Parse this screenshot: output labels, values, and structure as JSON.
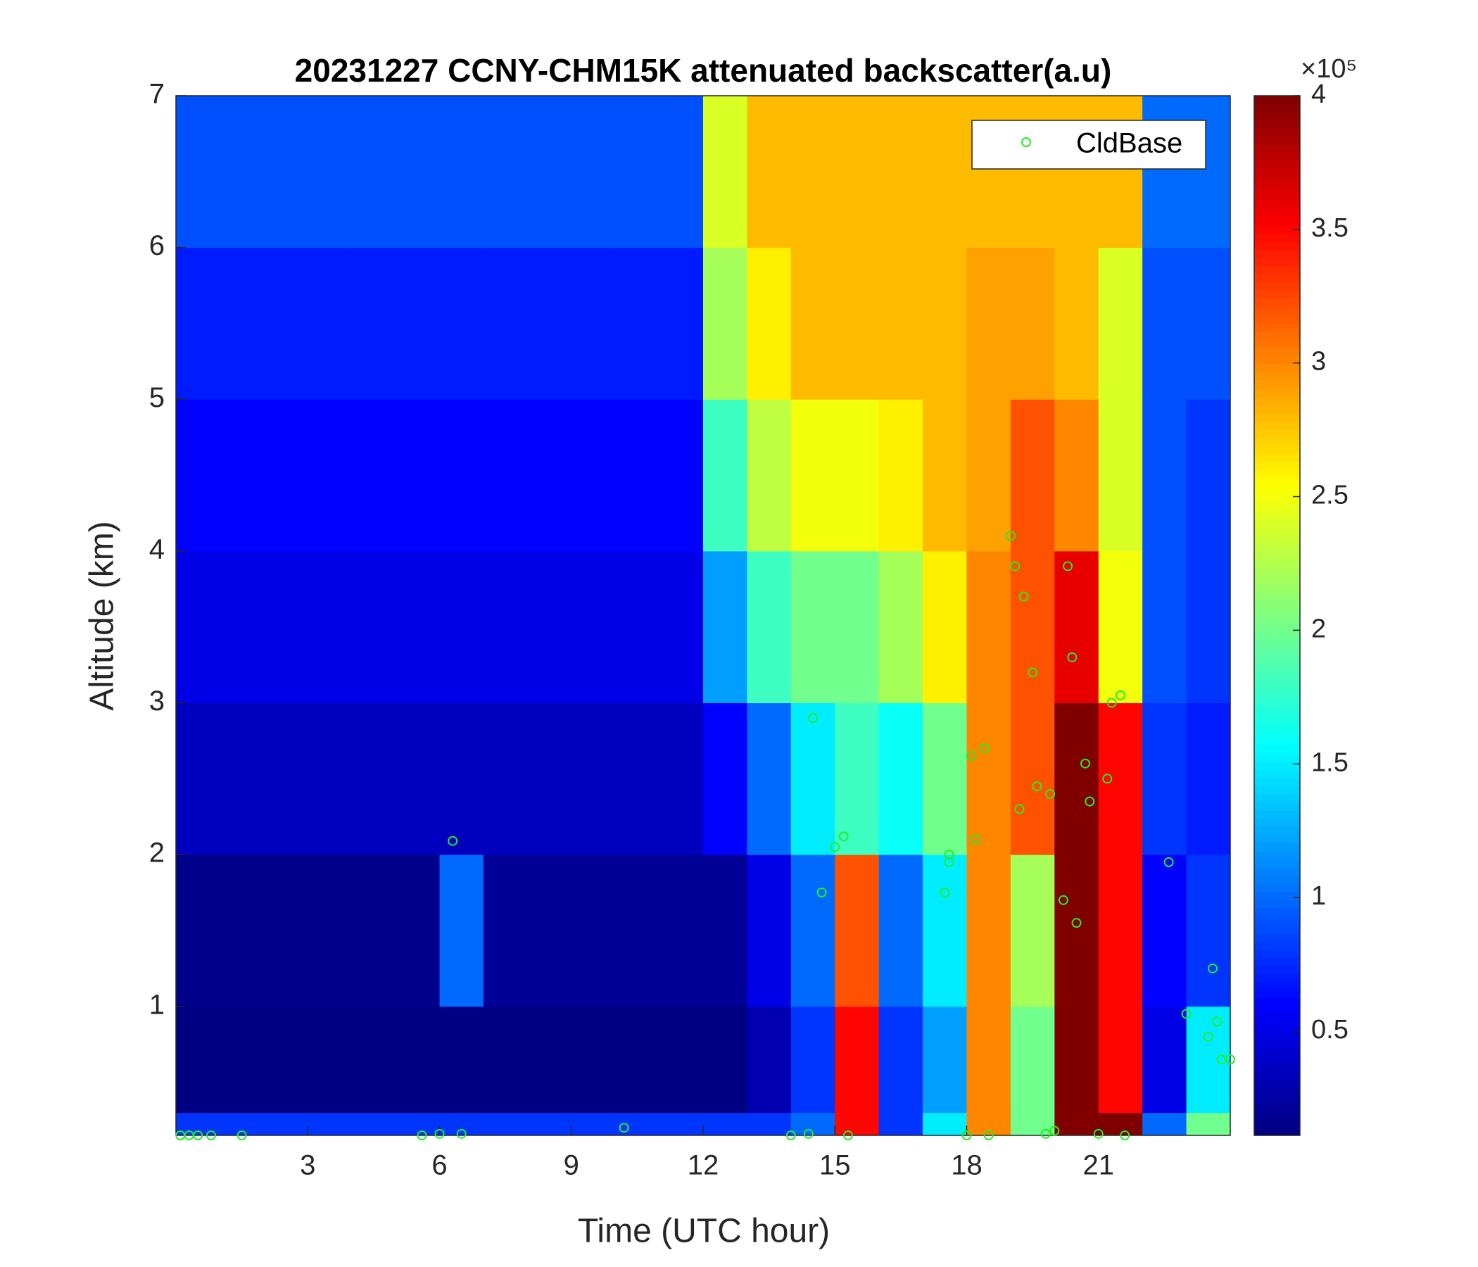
{
  "chart_data": {
    "type": "heatmap",
    "title": "20231227 CCNY-CHM15K attenuated backscatter(a.u)",
    "x_label": "Time (UTC hour)",
    "y_label": "Altitude (km)",
    "xlim": [
      0,
      24
    ],
    "ylim": [
      0.15,
      7
    ],
    "xticks": [
      3,
      6,
      9,
      12,
      15,
      18,
      21
    ],
    "yticks": [
      1,
      2,
      3,
      4,
      5,
      6,
      7
    ],
    "colormap": "jet",
    "clim": [
      0.11,
      4
    ],
    "cticks": [
      0.5,
      1,
      1.5,
      2,
      2.5,
      3,
      3.5,
      4
    ],
    "colorbar_exponent_label": "×10⁵",
    "x_edges": [
      0,
      1,
      2,
      3,
      4,
      5,
      6,
      7,
      8,
      9,
      10,
      11,
      12,
      13,
      14,
      15,
      16,
      17,
      18,
      19,
      20,
      21,
      22,
      23,
      24
    ],
    "y_edges": [
      0.15,
      0.3,
      1,
      2,
      3,
      4,
      5,
      6,
      7
    ],
    "z": [
      [
        0.8,
        0.8,
        0.8,
        0.8,
        0.8,
        0.8,
        0.8,
        0.8,
        0.8,
        0.8,
        0.8,
        0.8,
        0.8,
        0.8,
        1.0,
        3.5,
        0.8,
        1.5,
        3,
        2,
        4,
        4,
        1,
        2
      ],
      [
        0.12,
        0.12,
        0.12,
        0.12,
        0.12,
        0.12,
        0.12,
        0.12,
        0.12,
        0.12,
        0.12,
        0.12,
        0.12,
        0.3,
        0.8,
        3.5,
        0.8,
        1.2,
        3,
        2,
        4,
        3.5,
        0.5,
        1.5
      ],
      [
        0.15,
        0.15,
        0.15,
        0.15,
        0.15,
        0.15,
        1.0,
        0.2,
        0.2,
        0.2,
        0.2,
        0.2,
        0.2,
        0.5,
        1.0,
        3.2,
        1.0,
        1.5,
        3.0,
        2.2,
        4,
        3.5,
        0.6,
        0.8
      ],
      [
        0.35,
        0.35,
        0.35,
        0.35,
        0.35,
        0.35,
        0.35,
        0.35,
        0.35,
        0.35,
        0.35,
        0.35,
        0.6,
        1.0,
        1.5,
        1.8,
        1.6,
        2.0,
        3.0,
        3.2,
        4,
        3.5,
        0.8,
        0.7
      ],
      [
        0.5,
        0.5,
        0.5,
        0.5,
        0.5,
        0.5,
        0.5,
        0.5,
        0.5,
        0.5,
        0.5,
        0.5,
        1.2,
        1.8,
        2.0,
        2.0,
        2.2,
        2.6,
        3.0,
        3.2,
        3.6,
        2.5,
        0.9,
        0.8
      ],
      [
        0.6,
        0.6,
        0.6,
        0.6,
        0.6,
        0.6,
        0.6,
        0.6,
        0.6,
        0.6,
        0.6,
        0.6,
        1.8,
        2.3,
        2.5,
        2.5,
        2.6,
        2.8,
        2.9,
        3.2,
        3.0,
        2.4,
        0.9,
        0.8
      ],
      [
        0.7,
        0.7,
        0.7,
        0.7,
        0.7,
        0.7,
        0.7,
        0.7,
        0.7,
        0.7,
        0.7,
        0.7,
        2.2,
        2.6,
        2.8,
        2.8,
        2.8,
        2.8,
        2.9,
        2.9,
        2.8,
        2.4,
        0.9,
        0.9
      ],
      [
        0.9,
        0.9,
        0.9,
        0.9,
        0.9,
        0.9,
        0.9,
        0.9,
        0.9,
        0.9,
        0.9,
        0.9,
        2.4,
        2.8,
        2.8,
        2.8,
        2.8,
        2.8,
        2.8,
        2.8,
        2.8,
        2.8,
        1.0,
        1.0
      ]
    ],
    "series": [
      {
        "name": "CldBase",
        "type": "scatter",
        "color": "#22ee22",
        "x": [
          0.1,
          0.3,
          0.5,
          0.8,
          1.5,
          5.6,
          6.0,
          6.3,
          6.5,
          10.2,
          14.0,
          14.4,
          14.5,
          14.7,
          15.0,
          15.2,
          15.3,
          17.5,
          17.6,
          17.6,
          18.0,
          18.1,
          18.2,
          18.4,
          18.5,
          19.0,
          19.1,
          19.2,
          19.3,
          19.5,
          19.6,
          19.8,
          19.9,
          20.0,
          20.2,
          20.3,
          20.4,
          20.5,
          20.7,
          20.8,
          21.0,
          21.2,
          21.3,
          21.5,
          21.6,
          22.6,
          23.0,
          23.5,
          23.6,
          23.7,
          23.8,
          24.0
        ],
        "y": [
          0.15,
          0.15,
          0.15,
          0.15,
          0.15,
          0.15,
          0.16,
          2.09,
          0.16,
          0.2,
          0.15,
          0.16,
          2.9,
          1.75,
          2.05,
          2.12,
          0.15,
          1.75,
          1.95,
          2.0,
          0.15,
          2.65,
          2.1,
          2.7,
          0.15,
          4.1,
          3.9,
          2.3,
          3.7,
          3.2,
          2.45,
          0.16,
          2.4,
          0.18,
          1.7,
          3.9,
          3.3,
          1.55,
          2.6,
          2.35,
          0.16,
          2.5,
          3.0,
          3.05,
          0.15,
          1.95,
          0.95,
          0.8,
          1.25,
          0.9,
          0.65,
          0.65
        ]
      }
    ],
    "legend": "upper right"
  }
}
